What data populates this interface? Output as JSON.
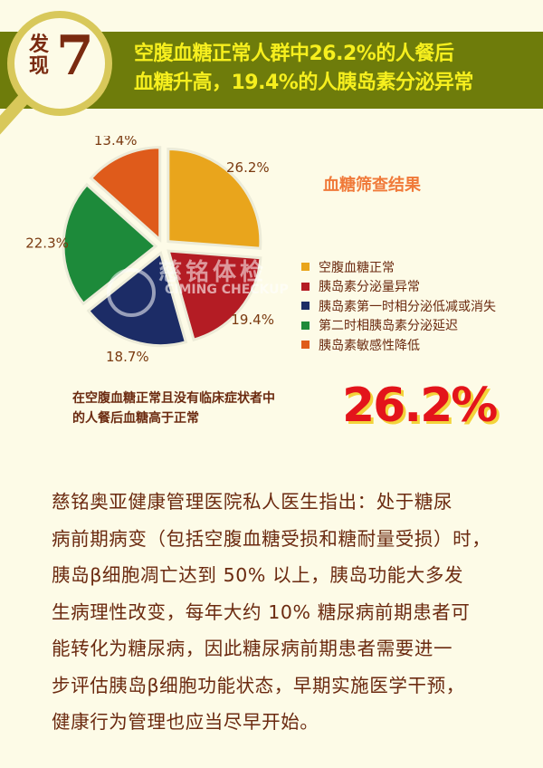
{
  "header": {
    "badge_char": "发现",
    "badge_number": "7",
    "headline_lines": [
      "空腹血糖正常人群中26.2%的人餐后",
      "血糖升高，19.4%的人胰岛素分泌异常"
    ]
  },
  "chart_data": {
    "type": "pie",
    "title": "血糖筛查结果",
    "categories": [
      "空腹血糖正常",
      "胰岛素分泌量异常",
      "胰岛素第一时相分泌低减或消失",
      "第二时相胰岛素分泌延迟",
      "胰岛素敏感性降低"
    ],
    "values": [
      26.2,
      19.4,
      18.7,
      22.3,
      13.4
    ],
    "data_labels": [
      "26.2%",
      "19.4%",
      "18.7%",
      "22.3%",
      "13.4%"
    ],
    "colors": [
      "#e9a51c",
      "#b41c24",
      "#1c2c66",
      "#1d8a3a",
      "#df5b1b"
    ],
    "start": "12 o'clock, clockwise",
    "exploded": true,
    "legend_position": "right"
  },
  "watermark": {
    "cn": "慈铭体检",
    "en": "CIMING CHECKUP"
  },
  "highlight": {
    "caption_lines": [
      "在空腹血糖正常且没有临床症状者中",
      "的人餐后血糖高于正常"
    ],
    "value": "26.2%"
  },
  "body": {
    "lines": [
      "慈铭奥亚健康管理医院私人医生指出：处于糖尿",
      "病前期病变（包括空腹血糖受损和糖耐量受损）时，",
      "胰岛β细胞凋亡达到 50% 以上，胰岛功能大多发",
      "生病理性改变，每年大约 10% 糖尿病前期患者可",
      "能转化为糖尿病，因此糖尿病前期患者需要进一",
      "步评估胰岛β细胞功能状态，早期实施医学干预，",
      "健康行为管理也应当尽早开始。"
    ]
  }
}
